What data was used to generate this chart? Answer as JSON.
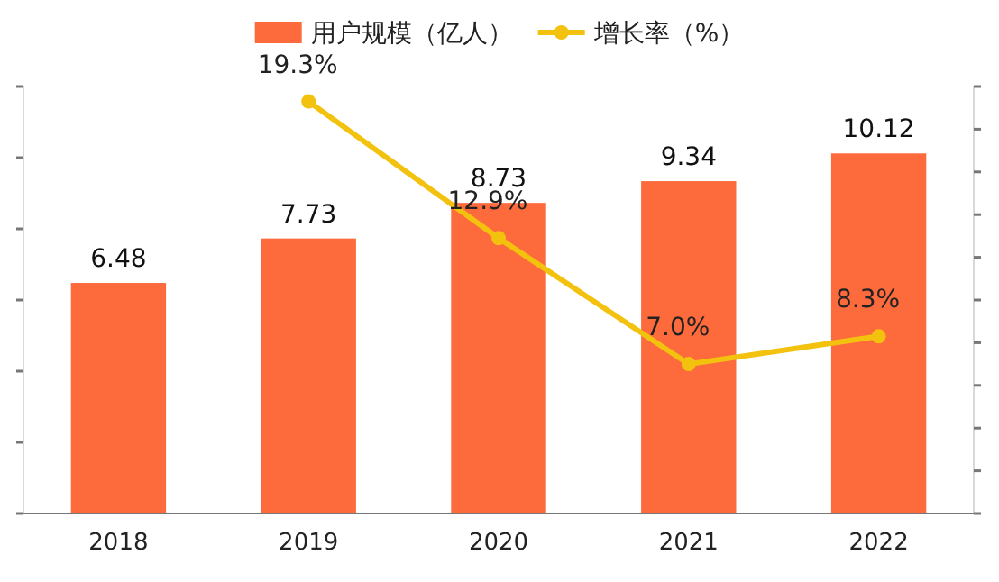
{
  "chart_data": {
    "type": "bar",
    "categories": [
      "2018",
      "2019",
      "2020",
      "2021",
      "2022"
    ],
    "series": [
      {
        "name": "用户规模（亿人）",
        "color": "#fd6a3c",
        "values": [
          6.48,
          7.73,
          8.73,
          9.34,
          10.12
        ],
        "value_labels": [
          "6.48",
          "7.73",
          "8.73",
          "9.34",
          "10.12"
        ]
      },
      {
        "name": "增长率（%）",
        "type": "line",
        "axis": "y2",
        "color": "#f2c20f",
        "marker": "circle",
        "values": [
          null,
          19.3,
          12.9,
          7.0,
          8.3
        ],
        "value_labels": [
          null,
          "19.3%",
          "12.9%",
          "7.0%",
          "8.3%"
        ]
      }
    ],
    "ylim": [
      0,
      12
    ],
    "yticks": [
      {
        "value": 0,
        "label": null
      },
      {
        "value": 2,
        "label": null
      },
      {
        "value": 4,
        "label": null
      },
      {
        "value": 6,
        "label": null
      },
      {
        "value": 8,
        "label": null
      },
      {
        "value": 10,
        "label": null
      },
      {
        "value": 12,
        "label": null
      }
    ],
    "y2lim": [
      0,
      20
    ],
    "y2ticks": [
      {
        "value": 0,
        "label": null
      },
      {
        "value": 2,
        "label": null
      },
      {
        "value": 4,
        "label": null
      },
      {
        "value": 6,
        "label": null
      },
      {
        "value": 8,
        "label": null
      },
      {
        "value": 10,
        "label": null
      },
      {
        "value": 12,
        "label": null
      },
      {
        "value": 14,
        "label": null
      },
      {
        "value": 16,
        "label": null
      },
      {
        "value": 18,
        "label": null
      },
      {
        "value": 20,
        "label": null
      }
    ],
    "legend": "top"
  }
}
